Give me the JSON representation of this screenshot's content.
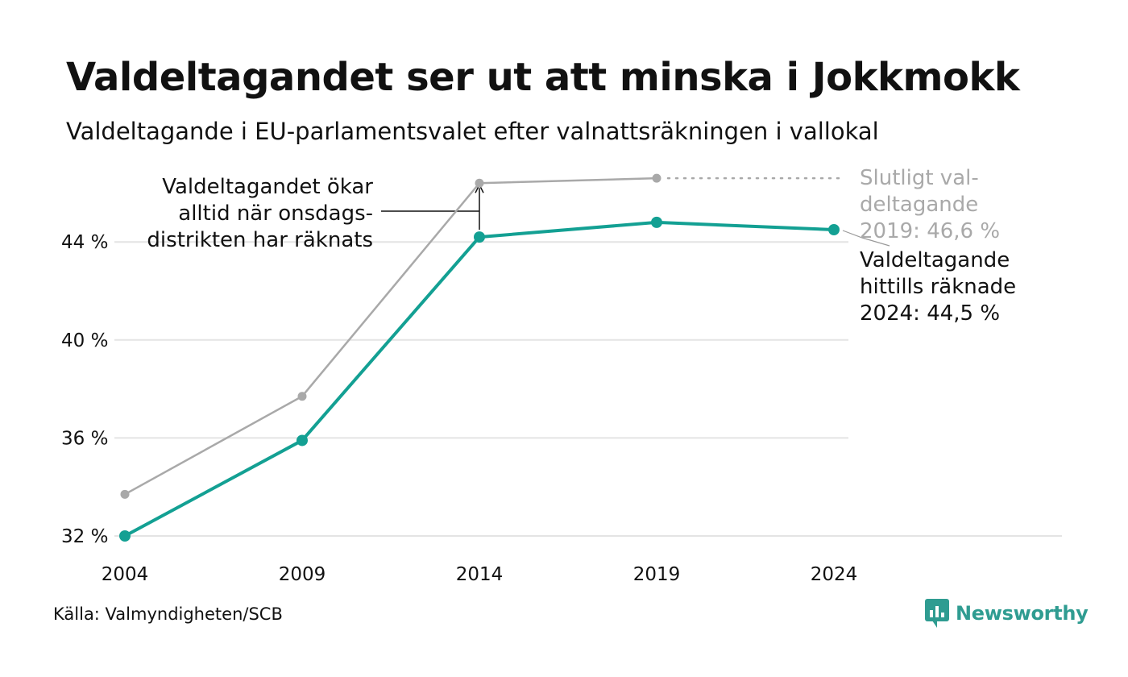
{
  "header": {
    "title": "Valdeltagandet ser ut att minska i Jokkmokk",
    "subtitle": "Valdeltagande i EU-parlamentsvalet efter valnattsräkningen i vallokal"
  },
  "chart_data": {
    "type": "line",
    "x": [
      2004,
      2009,
      2014,
      2019,
      2024
    ],
    "ylim": [
      32,
      47
    ],
    "yticks": [
      32,
      36,
      40,
      44
    ],
    "ytick_labels": [
      "32 %",
      "36 %",
      "40 %",
      "44 %"
    ],
    "xtick_labels": [
      "2004",
      "2009",
      "2014",
      "2019",
      "2024"
    ],
    "grid": true,
    "series": [
      {
        "id": "final",
        "color": "#a9a9a9",
        "values": [
          33.7,
          37.7,
          46.4,
          46.6,
          null
        ]
      },
      {
        "id": "counted",
        "color": "#13a093",
        "values": [
          32.0,
          35.9,
          44.2,
          44.8,
          44.5
        ]
      }
    ],
    "annotations": {
      "left_note": [
        "Valdeltagandet ökar",
        "alltid när onsdags-",
        "distrikten har räknats"
      ],
      "final_note": [
        "Slutligt val-",
        "deltagande",
        "2019: 46,6 %"
      ],
      "counted_note": [
        "Valdeltagande",
        "hittills räknade",
        "2024: 44,5 %"
      ]
    }
  },
  "footer": {
    "source": "Källa: Valmyndigheten/SCB",
    "brand": "Newsworthy",
    "brand_icon": "newsworthy-logo-icon",
    "brand_color": "#2f9c91"
  }
}
